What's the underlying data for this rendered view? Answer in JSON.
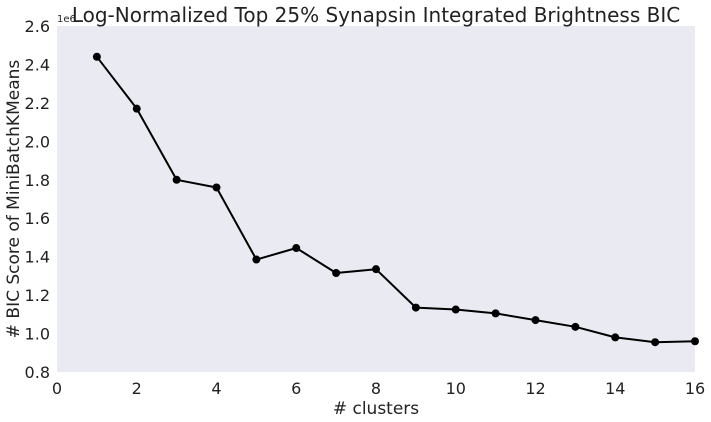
{
  "chart_data": {
    "type": "line",
    "title": "Log-Normalized Top 25% Synapsin Integrated Brightness BIC",
    "xlabel": "# clusters",
    "ylabel": "# BIC Score of MiniBatchKMeans",
    "y_offset_text": "1e6",
    "xlim": [
      0,
      16
    ],
    "ylim": [
      0.8,
      2.6
    ],
    "x_ticks": [
      0,
      2,
      4,
      6,
      8,
      10,
      12,
      14,
      16
    ],
    "x_tick_labels": [
      "0",
      "2",
      "4",
      "6",
      "8",
      "10",
      "12",
      "14",
      "16"
    ],
    "y_ticks": [
      0.8,
      1.0,
      1.2,
      1.4,
      1.6,
      1.8,
      2.0,
      2.2,
      2.4,
      2.6
    ],
    "y_tick_labels": [
      "0.8",
      "1.0",
      "1.2",
      "1.4",
      "1.6",
      "1.8",
      "2.0",
      "2.2",
      "2.4",
      "2.6"
    ],
    "grid": false,
    "legend": false,
    "colors": {
      "background": "#eaeaf2",
      "line": "#000000",
      "marker": "#000000"
    },
    "series": [
      {
        "x": [
          1,
          2,
          3,
          4,
          5,
          6,
          7,
          8,
          9,
          10,
          11,
          12,
          13,
          14,
          15,
          16
        ],
        "y": [
          2.44,
          2.17,
          1.8,
          1.76,
          1.385,
          1.445,
          1.315,
          1.335,
          1.135,
          1.125,
          1.105,
          1.07,
          1.035,
          0.98,
          0.955,
          0.96
        ]
      }
    ]
  }
}
